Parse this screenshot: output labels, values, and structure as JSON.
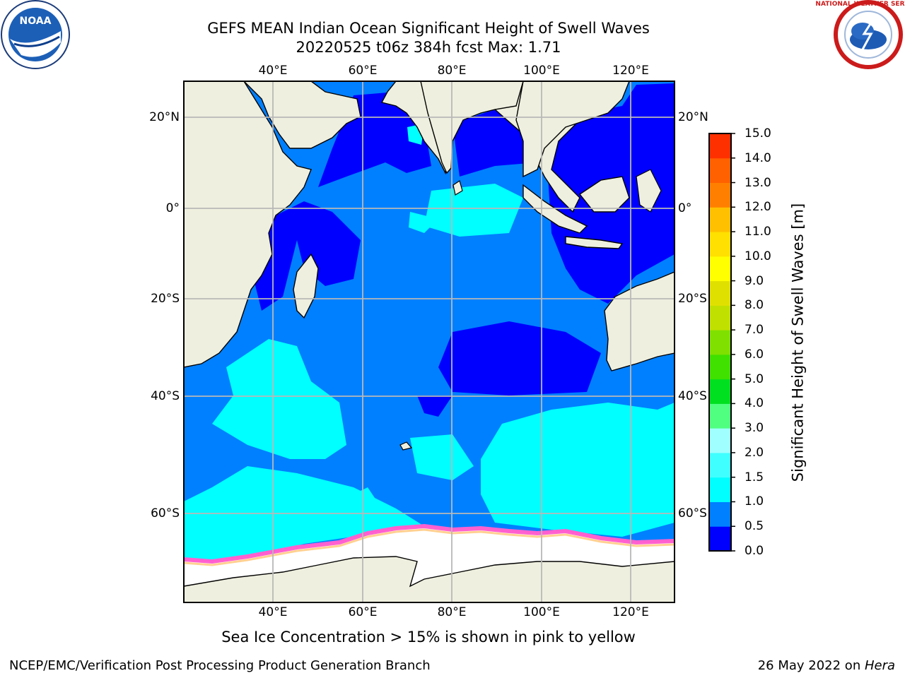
{
  "title_line1": "GEFS MEAN Indian Ocean Significant Height of Swell Waves",
  "title_line2": "20220525 t06z 384h fcst   Max: 1.71",
  "logos": {
    "left": {
      "name": "noaa-logo",
      "text": "NOAA"
    },
    "right": {
      "name": "national-weather-service-logo",
      "text": "NATIONAL WEATHER SERVICE"
    }
  },
  "map": {
    "lon_range": [
      20,
      130
    ],
    "lat_range": [
      -73,
      27
    ],
    "lon_ticks": [
      {
        "value": 40,
        "label": "40°E"
      },
      {
        "value": 60,
        "label": "60°E"
      },
      {
        "value": 80,
        "label": "80°E"
      },
      {
        "value": 100,
        "label": "100°E"
      },
      {
        "value": 120,
        "label": "120°E"
      }
    ],
    "lat_ticks": [
      {
        "value": 20,
        "label": "20°N"
      },
      {
        "value": 0,
        "label": "0°"
      },
      {
        "value": -20,
        "label": "20°S"
      },
      {
        "value": -40,
        "label": "40°S"
      },
      {
        "value": -60,
        "label": "60°S"
      }
    ],
    "grid": true,
    "land_color": "#efefdf",
    "ice_color": "#ffffff"
  },
  "colorbar": {
    "label": "Significant Height of Swell Waves [m]",
    "ticks": [
      "0.0",
      "0.5",
      "1.0",
      "1.5",
      "2.0",
      "3.0",
      "4.0",
      "5.0",
      "6.0",
      "7.0",
      "8.0",
      "9.0",
      "10.0",
      "11.0",
      "12.0",
      "13.0",
      "14.0",
      "15.0"
    ],
    "colors": [
      "#0000ff",
      "#0080ff",
      "#00ffff",
      "#40ffff",
      "#a0ffff",
      "#50ff80",
      "#00e020",
      "#40e000",
      "#80e000",
      "#c0e000",
      "#e0e000",
      "#ffff00",
      "#ffe000",
      "#ffc000",
      "#ff8000",
      "#ff6000",
      "#ff3000",
      "#ff0000"
    ]
  },
  "note": "Sea Ice Concentration > 15% is shown in pink to yellow",
  "footer_left": "NCEP/EMC/Verification Post Processing Product Generation Branch",
  "footer_date": "26 May 2022 on ",
  "footer_host": "Hera"
}
